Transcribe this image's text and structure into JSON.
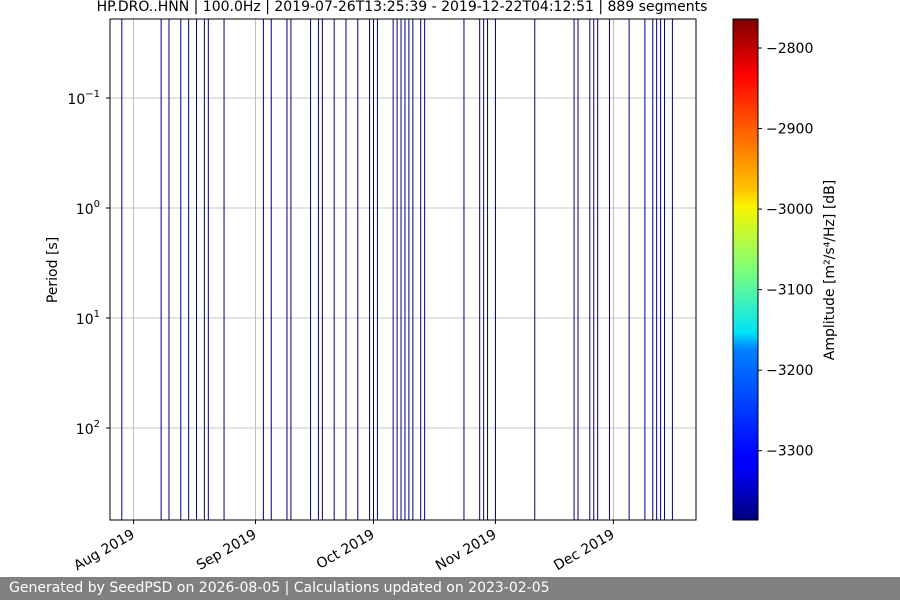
{
  "chart_data": {
    "type": "heatmap",
    "title": "HP.DRO..HNN | 100.0Hz | 2019-07-26T13:25:39 - 2019-12-22T04:12:51 | 889 segments",
    "ylabel": "Period [s]",
    "y_scale": "log",
    "y_inverted": true,
    "grid": true,
    "xlim": [
      "2019-07-26",
      "2019-12-22"
    ],
    "x_ticks": [
      {
        "date": "2019-08-01",
        "label": "Aug 2019"
      },
      {
        "date": "2019-09-01",
        "label": "Sep 2019"
      },
      {
        "date": "2019-10-01",
        "label": "Oct 2019"
      },
      {
        "date": "2019-11-01",
        "label": "Nov 2019"
      },
      {
        "date": "2019-12-01",
        "label": "Dec 2019"
      }
    ],
    "y_ticks": [
      {
        "value": 0.1,
        "base": "10",
        "exp": "−1"
      },
      {
        "value": 1,
        "base": "10",
        "exp": "0"
      },
      {
        "value": 10,
        "base": "10",
        "exp": "1"
      },
      {
        "value": 100,
        "base": "10",
        "exp": "2"
      }
    ],
    "colorbar": {
      "label": "Amplitude [m²/s⁴/Hz] [dB]",
      "colormap": "jet",
      "range": [
        -3386,
        -2764
      ],
      "ticks": [
        {
          "value": -2800,
          "label": "−2800"
        },
        {
          "value": -2900,
          "label": "−2900"
        },
        {
          "value": -3000,
          "label": "−3000"
        },
        {
          "value": -3100,
          "label": "−3100"
        },
        {
          "value": -3200,
          "label": "−3200"
        },
        {
          "value": -3300,
          "label": "−3300"
        }
      ]
    },
    "segment_dates": [
      "2019-07-29",
      "2019-08-08",
      "2019-08-10",
      "2019-08-13",
      "2019-08-15",
      "2019-08-17",
      "2019-08-19",
      "2019-08-20",
      "2019-08-24",
      "2019-09-03",
      "2019-09-05",
      "2019-09-09",
      "2019-09-10",
      "2019-09-15",
      "2019-09-17",
      "2019-09-18",
      "2019-09-21",
      "2019-09-24",
      "2019-09-27",
      "2019-09-30",
      "2019-10-01",
      "2019-10-02",
      "2019-10-06",
      "2019-10-07",
      "2019-10-08",
      "2019-10-09",
      "2019-10-10",
      "2019-10-11",
      "2019-10-13",
      "2019-10-14",
      "2019-10-24",
      "2019-10-28",
      "2019-10-29",
      "2019-10-30",
      "2019-11-01",
      "2019-11-11",
      "2019-11-21",
      "2019-11-22",
      "2019-11-25",
      "2019-11-26",
      "2019-11-27",
      "2019-11-30",
      "2019-12-05",
      "2019-12-09",
      "2019-12-11",
      "2019-12-12",
      "2019-12-13",
      "2019-12-14",
      "2019-12-16"
    ]
  },
  "footer": {
    "text": "Generated by SeedPSD on 2026-08-05 | Calculations updated on 2023-02-05"
  }
}
